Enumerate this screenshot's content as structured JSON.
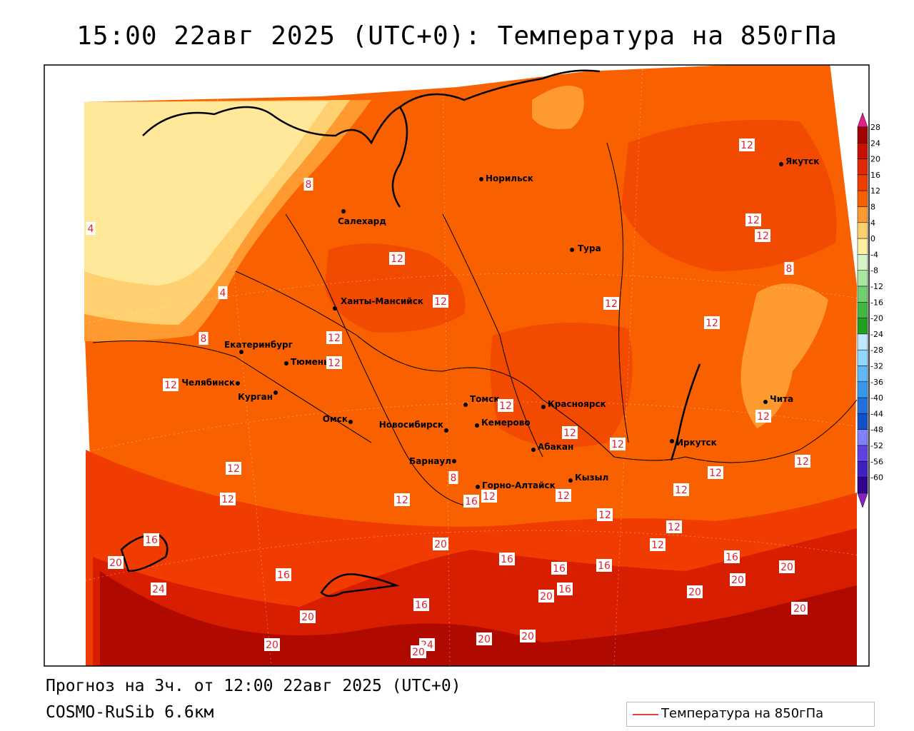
{
  "title": "15:00 22авг 2025 (UTC+0): Температура на 850гПа",
  "footer": {
    "line1": "Прогноз на 3ч. от 12:00 22авг 2025 (UTC+0)",
    "line2": "COSMO-RuSib 6.6км"
  },
  "legend": {
    "label": "Температура на 850гПа",
    "line_color": "#e84040"
  },
  "colorbar": {
    "labels": [
      "28",
      "24",
      "20",
      "16",
      "12",
      "8",
      "4",
      "0",
      "-4",
      "-8",
      "-12",
      "-16",
      "-20",
      "-24",
      "-28",
      "-32",
      "-36",
      "-40",
      "-44",
      "-48",
      "-52",
      "-56",
      "-60"
    ],
    "colors": [
      "#a00000",
      "#c81000",
      "#e02800",
      "#f03c00",
      "#f86000",
      "#ff9a30",
      "#ffd070",
      "#fff0a0",
      "#d8f5c8",
      "#a8e8a0",
      "#70d070",
      "#40b840",
      "#20a020",
      "#c0eaff",
      "#90d8ff",
      "#60b8f8",
      "#3898f0",
      "#2070e0",
      "#1050c8",
      "#8080ff",
      "#6040e0",
      "#4020c0",
      "#300090"
    ],
    "top_arrow_color": "#e0208a",
    "bottom_arrow_color": "#8a20c0"
  },
  "cities": [
    {
      "name": "Норильск"
    },
    {
      "name": "Якутск"
    },
    {
      "name": "Салехард"
    },
    {
      "name": "Тура"
    },
    {
      "name": "Ханты-Мансийск"
    },
    {
      "name": "Екатеринбург"
    },
    {
      "name": "Тюмень"
    },
    {
      "name": "Челябинск"
    },
    {
      "name": "Курган"
    },
    {
      "name": "Омск"
    },
    {
      "name": "Новосибирск"
    },
    {
      "name": "Томск"
    },
    {
      "name": "Кемерово"
    },
    {
      "name": "Красноярск"
    },
    {
      "name": "Абакан"
    },
    {
      "name": "Барнаул"
    },
    {
      "name": "Горно-Алтайск"
    },
    {
      "name": "Кызыл"
    },
    {
      "name": "Иркутск"
    },
    {
      "name": "Чита"
    }
  ],
  "contour_labels": [
    "8",
    "4",
    "4",
    "8",
    "12",
    "12",
    "12",
    "12",
    "12",
    "12",
    "12",
    "12",
    "12",
    "12",
    "12",
    "8",
    "12",
    "12",
    "12",
    "12",
    "12",
    "12",
    "12",
    "12",
    "12",
    "12",
    "12",
    "12",
    "12",
    "12",
    "8",
    "16",
    "16",
    "16",
    "20",
    "24",
    "16",
    "16",
    "16",
    "16",
    "16",
    "16",
    "20",
    "20",
    "20",
    "20",
    "20",
    "20",
    "20",
    "20",
    "24",
    "20",
    "20",
    "20",
    "20"
  ]
}
